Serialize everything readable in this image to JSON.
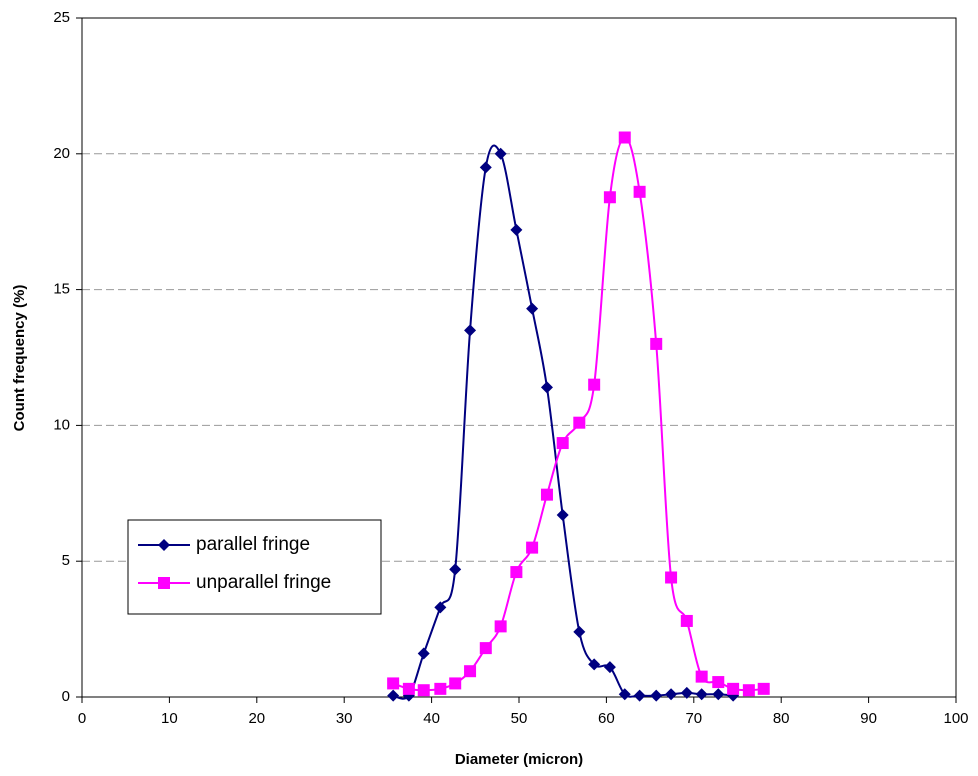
{
  "chart_data": {
    "type": "line",
    "xlabel": "Diameter (micron)",
    "ylabel": "Count frequency (%)",
    "xlim": [
      0,
      100
    ],
    "xticks": [
      0,
      10,
      20,
      30,
      40,
      50,
      60,
      70,
      80,
      90,
      100
    ],
    "ylim": [
      0,
      25
    ],
    "yticks": [
      0,
      5,
      10,
      15,
      20,
      25
    ],
    "grid": true,
    "legend": "left",
    "smooth": true,
    "series": [
      {
        "name": "parallel fringe",
        "color": "#000080",
        "marker": "diamond",
        "x": [
          35.6,
          37.4,
          39.1,
          41.0,
          42.7,
          44.4,
          46.2,
          47.9,
          49.7,
          51.5,
          53.2,
          55.0,
          56.9,
          58.6,
          60.4,
          62.1,
          63.8,
          65.7,
          67.4,
          69.2,
          70.9,
          72.8,
          74.5
        ],
        "values": [
          0.05,
          0.05,
          1.6,
          3.3,
          4.7,
          13.5,
          19.5,
          20,
          17.2,
          14.3,
          11.4,
          6.7,
          2.4,
          1.2,
          1.1,
          0.1,
          0.05,
          0.05,
          0.1,
          0.15,
          0.1,
          0.1,
          0.05
        ]
      },
      {
        "name": "unparallel fringe",
        "color": "#ff00ff",
        "marker": "square",
        "x": [
          35.6,
          37.4,
          39.1,
          41.0,
          42.7,
          44.4,
          46.2,
          47.9,
          49.7,
          51.5,
          53.2,
          55.0,
          56.9,
          58.6,
          60.4,
          62.1,
          63.8,
          65.7,
          67.4,
          69.2,
          70.9,
          72.8,
          74.5,
          76.3,
          78.0
        ],
        "values": [
          0.5,
          0.3,
          0.25,
          0.3,
          0.5,
          0.95,
          1.8,
          2.6,
          4.6,
          5.5,
          7.45,
          9.35,
          10.1,
          11.5,
          18.4,
          20.6,
          18.6,
          13,
          4.4,
          2.8,
          0.75,
          0.55,
          0.3,
          0.25,
          0.3
        ]
      }
    ]
  }
}
